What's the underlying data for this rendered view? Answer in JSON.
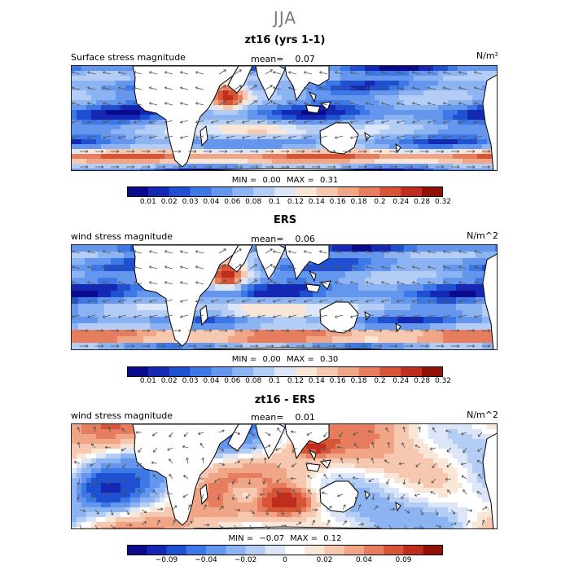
{
  "header": {
    "title": "JJA"
  },
  "colors": {
    "land": "#ffffff",
    "coast": "#000000",
    "arrow": "#555555"
  },
  "colorbar_abs": [
    "#0a0a8c",
    "#1428b4",
    "#1f50d2",
    "#3c78e6",
    "#6496ee",
    "#8cb4f2",
    "#b4cdf5",
    "#dce6f8",
    "#fae6d7",
    "#f5c8af",
    "#f0a587",
    "#e67d5f",
    "#d75537",
    "#be2d1e",
    "#911005"
  ],
  "colorbar_diff": [
    "#0a0a8c",
    "#1428b4",
    "#1f50d2",
    "#3c78e6",
    "#6496ee",
    "#8cb4f2",
    "#b4cdf5",
    "#dce6f8",
    "#ffffff",
    "#fae6d7",
    "#f5c8af",
    "#f0a587",
    "#e67d5f",
    "#d75537",
    "#be2d1e",
    "#911005"
  ],
  "panels": [
    {
      "title": "zt16 (yrs 1-1)",
      "field": "Surface stress magnitude",
      "mean_label": "mean=",
      "mean": "0.07",
      "unit": "N/m²",
      "min_label": "MIN =",
      "min": "0.00",
      "max_label": "MAX =",
      "max": "0.31",
      "ticks": [
        "0.01",
        "0.02",
        "0.03",
        "0.04",
        "0.06",
        "0.08",
        "0.1",
        "0.12",
        "0.14",
        "0.16",
        "0.18",
        "0.2",
        "0.24",
        "0.28",
        "0.32"
      ]
    },
    {
      "title": "ERS",
      "field": "wind stress magnitude",
      "mean_label": "mean=",
      "mean": "0.06",
      "unit": "N/m^2",
      "min_label": "MIN =",
      "min": "0.00",
      "max_label": "MAX =",
      "max": "0.30",
      "ticks": [
        "0.01",
        "0.02",
        "0.03",
        "0.04",
        "0.06",
        "0.08",
        "0.1",
        "0.12",
        "0.14",
        "0.16",
        "0.18",
        "0.2",
        "0.24",
        "0.28",
        "0.32"
      ]
    },
    {
      "title": "zt16 - ERS",
      "field": "wind stress magnitude",
      "mean_label": "mean=",
      "mean": "0.01",
      "unit": "N/m^2",
      "min_label": "MIN =",
      "min": "−0.07",
      "max_label": "MAX =",
      "max": "0.12",
      "ticks": [
        "−0.09",
        "−0.04",
        "−0.02",
        "0",
        "0.02",
        "0.04",
        "0.09"
      ]
    }
  ],
  "chart_data": [
    {
      "type": "heatmap",
      "title": "zt16 (yrs 1-1)",
      "subtitle": "Surface stress magnitude",
      "season": "JJA",
      "units": "N/m2",
      "mean": 0.07,
      "min": 0.0,
      "max": 0.31,
      "region": {
        "lon_range": [
          -60,
          300
        ],
        "lat_range": [
          -70,
          70
        ]
      },
      "color_levels": [
        0.01,
        0.02,
        0.03,
        0.04,
        0.06,
        0.08,
        0.1,
        0.12,
        0.14,
        0.16,
        0.18,
        0.2,
        0.24,
        0.28,
        0.32
      ],
      "overlay": "wind stress vectors"
    },
    {
      "type": "heatmap",
      "title": "ERS",
      "subtitle": "wind stress magnitude",
      "season": "JJA",
      "units": "N/m^2",
      "mean": 0.06,
      "min": 0.0,
      "max": 0.3,
      "region": {
        "lon_range": [
          -60,
          300
        ],
        "lat_range": [
          -70,
          70
        ]
      },
      "color_levels": [
        0.01,
        0.02,
        0.03,
        0.04,
        0.06,
        0.08,
        0.1,
        0.12,
        0.14,
        0.16,
        0.18,
        0.2,
        0.24,
        0.28,
        0.32
      ],
      "overlay": "wind stress vectors"
    },
    {
      "type": "heatmap",
      "title": "zt16 - ERS",
      "subtitle": "wind stress magnitude",
      "season": "JJA",
      "units": "N/m^2",
      "mean": 0.01,
      "min": -0.07,
      "max": 0.12,
      "region": {
        "lon_range": [
          -60,
          300
        ],
        "lat_range": [
          -70,
          70
        ]
      },
      "color_levels": [
        -0.09,
        -0.04,
        -0.02,
        0,
        0.02,
        0.04,
        0.09
      ],
      "overlay": "wind stress difference vectors"
    }
  ]
}
